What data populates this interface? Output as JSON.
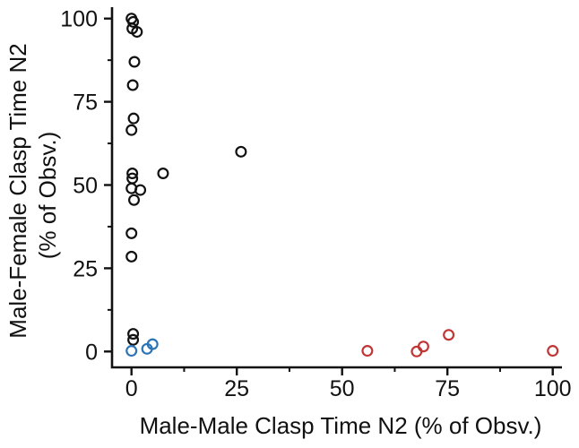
{
  "figure": {
    "background": "#ffffff"
  },
  "chart_data": {
    "type": "scatter",
    "title": "",
    "xlabel": "Male-Male Clasp Time N2 (% of Obsv.)",
    "ylabel": "Male-Female Clasp Time N2 (% of Obsv.)",
    "ylabel_lines": [
      "Male-Female Clasp Time N2",
      "(% of Obsv.)"
    ],
    "xlim": [
      -4.6,
      102.2
    ],
    "ylim": [
      -4.8,
      103.4
    ],
    "grid": false,
    "legend": "none",
    "axis_color": "#111111",
    "marker": {
      "shape": "open-circle",
      "radius_px": 5.4,
      "stroke_px": 2.2
    },
    "x_ticks": {
      "values": [
        0,
        25,
        50,
        75,
        100
      ],
      "labels": [
        "0",
        "25",
        "50",
        "75",
        "100"
      ],
      "minor": [
        12.5,
        37.5,
        62.5,
        87.5
      ]
    },
    "y_ticks": {
      "values": [
        0,
        25,
        50,
        75,
        100
      ],
      "labels": [
        "0",
        "25",
        "50",
        "75",
        "100"
      ],
      "minor": [
        12.5,
        37.5,
        62.5,
        87.5
      ]
    },
    "series": [
      {
        "name": "series-black",
        "color": "#111111",
        "points": [
          [
            0,
            100
          ],
          [
            0.4,
            99
          ],
          [
            0.2,
            97
          ],
          [
            1.3,
            96
          ],
          [
            0.7,
            87
          ],
          [
            0.3,
            80
          ],
          [
            0.5,
            70
          ],
          [
            0,
            66.5
          ],
          [
            26,
            60
          ],
          [
            7.5,
            53.5
          ],
          [
            0.2,
            53.5
          ],
          [
            0.2,
            52
          ],
          [
            0,
            49
          ],
          [
            2.1,
            48.5
          ],
          [
            0.6,
            45.5
          ],
          [
            0,
            35.5
          ],
          [
            0,
            28.5
          ],
          [
            0.4,
            5.3
          ],
          [
            0.4,
            3.5
          ]
        ]
      },
      {
        "name": "series-blue",
        "color": "#2e74b5",
        "points": [
          [
            0,
            0.2
          ],
          [
            3.7,
            0.8
          ],
          [
            5,
            2.2
          ]
        ]
      },
      {
        "name": "series-red",
        "color": "#c13535",
        "points": [
          [
            56,
            0.2
          ],
          [
            67.7,
            0
          ],
          [
            69.3,
            1.5
          ],
          [
            75.3,
            5
          ],
          [
            100,
            0.2
          ]
        ]
      }
    ]
  }
}
